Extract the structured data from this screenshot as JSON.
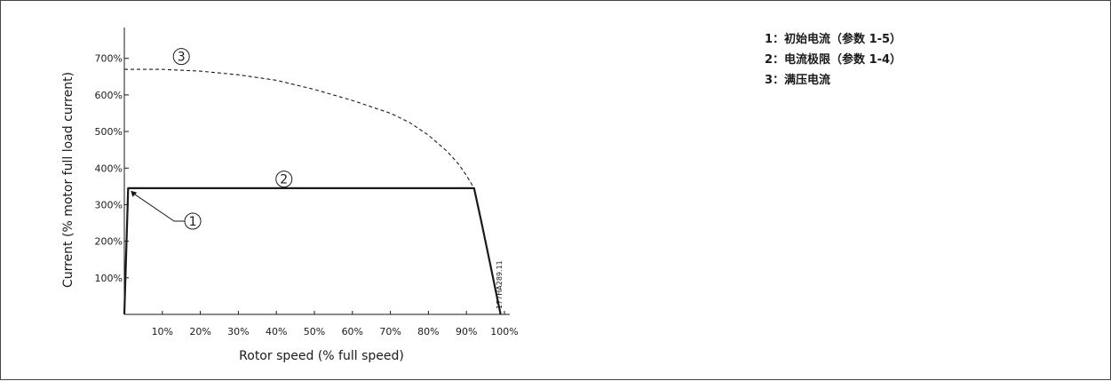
{
  "chart_data": {
    "type": "line",
    "xlabel": "Rotor speed (% full speed)",
    "ylabel": "Current (% motor full load current)",
    "xlim": [
      0,
      100
    ],
    "ylim": [
      0,
      760
    ],
    "x_ticks": [
      "10%",
      "20%",
      "30%",
      "40%",
      "50%",
      "60%",
      "70%",
      "80%",
      "90%",
      "100%"
    ],
    "x_tick_values": [
      10,
      20,
      30,
      40,
      50,
      60,
      70,
      80,
      90,
      100
    ],
    "y_ticks": [
      "100%",
      "200%",
      "300%",
      "400%",
      "500%",
      "600%",
      "700%"
    ],
    "y_tick_values": [
      100,
      200,
      300,
      400,
      500,
      600,
      700
    ],
    "series": [
      {
        "style": "solid",
        "x": [
          0,
          1,
          92,
          94,
          96,
          98,
          99
        ],
        "y": [
          0,
          345,
          345,
          250,
          150,
          50,
          0
        ]
      },
      {
        "style": "dashed",
        "x": [
          0,
          10,
          20,
          30,
          40,
          50,
          60,
          70,
          75,
          80,
          85,
          88,
          90,
          92
        ],
        "y": [
          670,
          670,
          665,
          655,
          640,
          615,
          585,
          550,
          525,
          490,
          445,
          410,
          380,
          345
        ]
      }
    ],
    "markers": [
      {
        "label": "1",
        "x": 18,
        "y": 255
      },
      {
        "label": "2",
        "x": 42,
        "y": 370
      },
      {
        "label": "3",
        "x": 15,
        "y": 705
      }
    ],
    "code": "177HA289.11"
  },
  "legend": [
    {
      "text": "1：初始电流（参数 1-5）"
    },
    {
      "text": "2：电流极限（参数 1-4）"
    },
    {
      "text": "3：满压电流"
    }
  ],
  "colors": {
    "line": "#1a1a1a",
    "border": "#444444"
  }
}
